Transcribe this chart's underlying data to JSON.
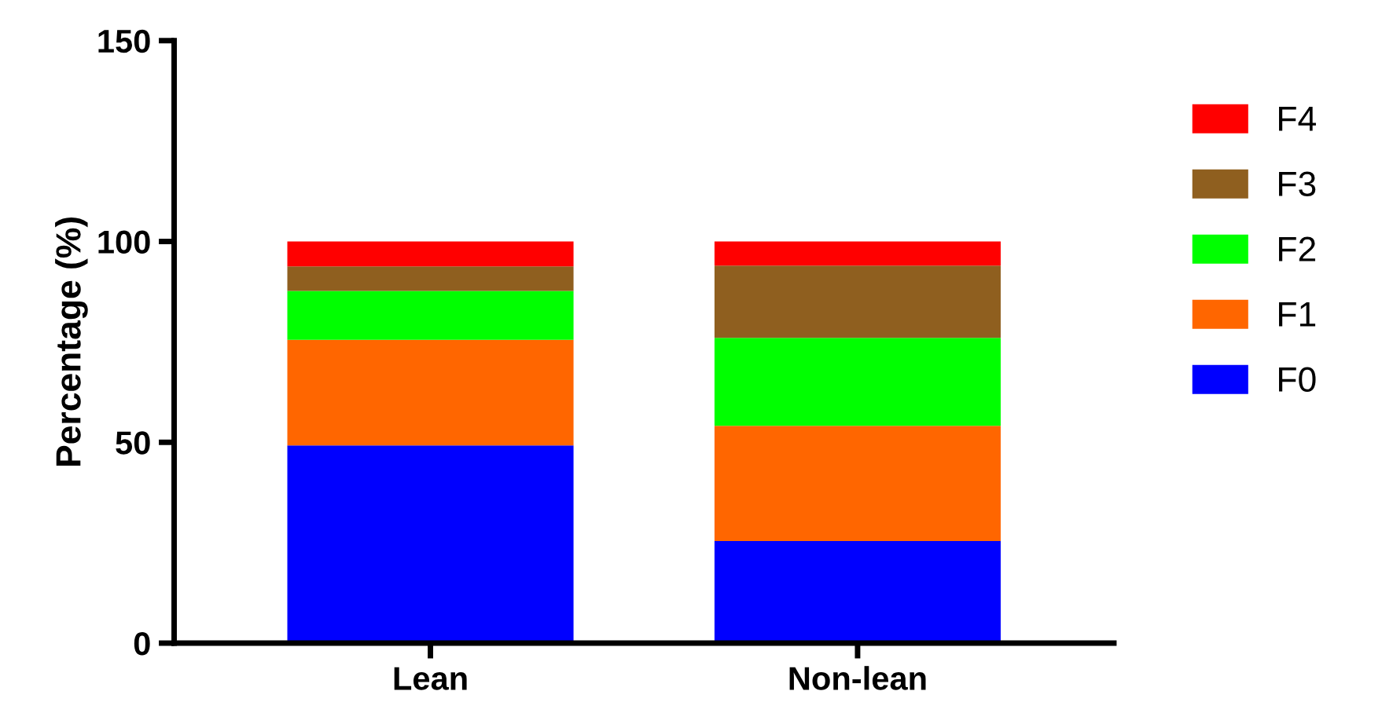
{
  "chart_data": {
    "type": "bar",
    "stacked": true,
    "ylabel": "Percentage (%)",
    "categories": [
      "Lean",
      "Non-lean"
    ],
    "series": [
      {
        "name": "F0",
        "color": "#0000ff",
        "values": [
          49.2,
          25.4
        ]
      },
      {
        "name": "F1",
        "color": "#ff6600",
        "values": [
          26.3,
          28.7
        ]
      },
      {
        "name": "F2",
        "color": "#00ff00",
        "values": [
          12.2,
          21.9
        ]
      },
      {
        "name": "F3",
        "color": "#8f5f1f",
        "values": [
          6.1,
          18.0
        ]
      },
      {
        "name": "F4",
        "color": "#ff0000",
        "values": [
          6.2,
          6.0
        ]
      }
    ],
    "ylim": [
      0,
      150
    ],
    "yticks": [
      0,
      50,
      100,
      150
    ],
    "grid": false,
    "legend": "right"
  }
}
